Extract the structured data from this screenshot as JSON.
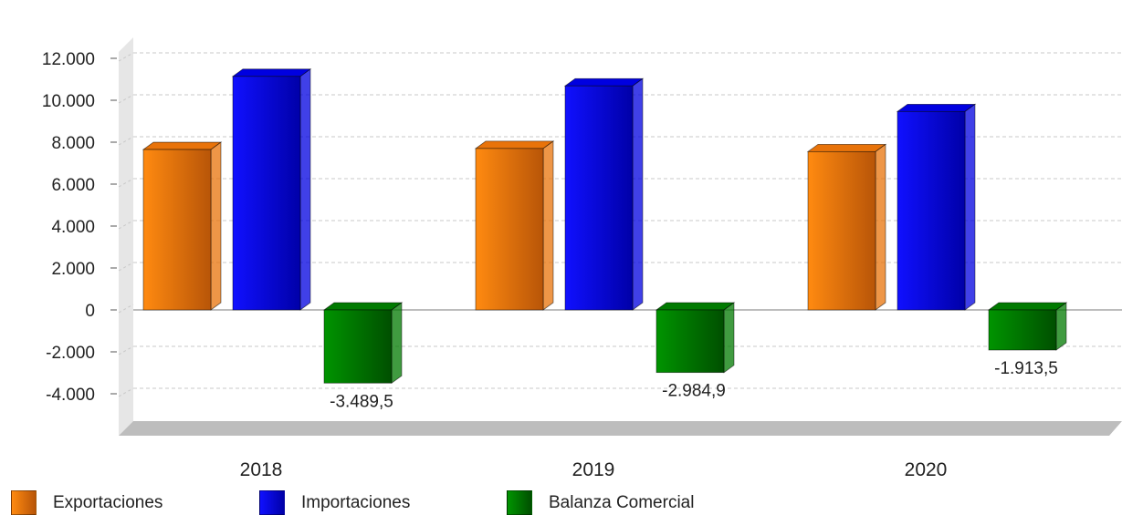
{
  "colors": {
    "Exportaciones": "#e8730a",
    "Importaciones": "#0000e0",
    "Balanza Comercial": "#007a00"
  },
  "legend": {
    "items": [
      {
        "label": "Exportaciones",
        "color": "#e8730a"
      },
      {
        "label": "Importaciones",
        "color": "#0000e0"
      },
      {
        "label": "Balanza Comercial",
        "color": "#007a00"
      }
    ]
  },
  "chart_data": {
    "type": "bar",
    "style": "3d-clustered",
    "categories": [
      "2018",
      "2019",
      "2020"
    ],
    "series": [
      {
        "name": "Exportaciones",
        "values": [
          7650,
          7700,
          7550
        ]
      },
      {
        "name": "Importaciones",
        "values": [
          11139.5,
          10684.9,
          9463.5
        ]
      },
      {
        "name": "Balanza Comercial",
        "values": [
          -3489.5,
          -2984.9,
          -1913.5
        ],
        "labels": [
          "-3.489,5",
          "-2.984,9",
          "-1.913,5"
        ]
      }
    ],
    "ylim": [
      -6000,
      13000
    ],
    "yticks": [
      -4000,
      -2000,
      0,
      2000,
      4000,
      6000,
      8000,
      10000,
      12000
    ],
    "ytick_labels": [
      "-4.000",
      "-2.000",
      "0",
      "2.000",
      "4.000",
      "6.000",
      "8.000",
      "10.000",
      "12.000"
    ],
    "grid": true,
    "legend_position": "bottom"
  }
}
